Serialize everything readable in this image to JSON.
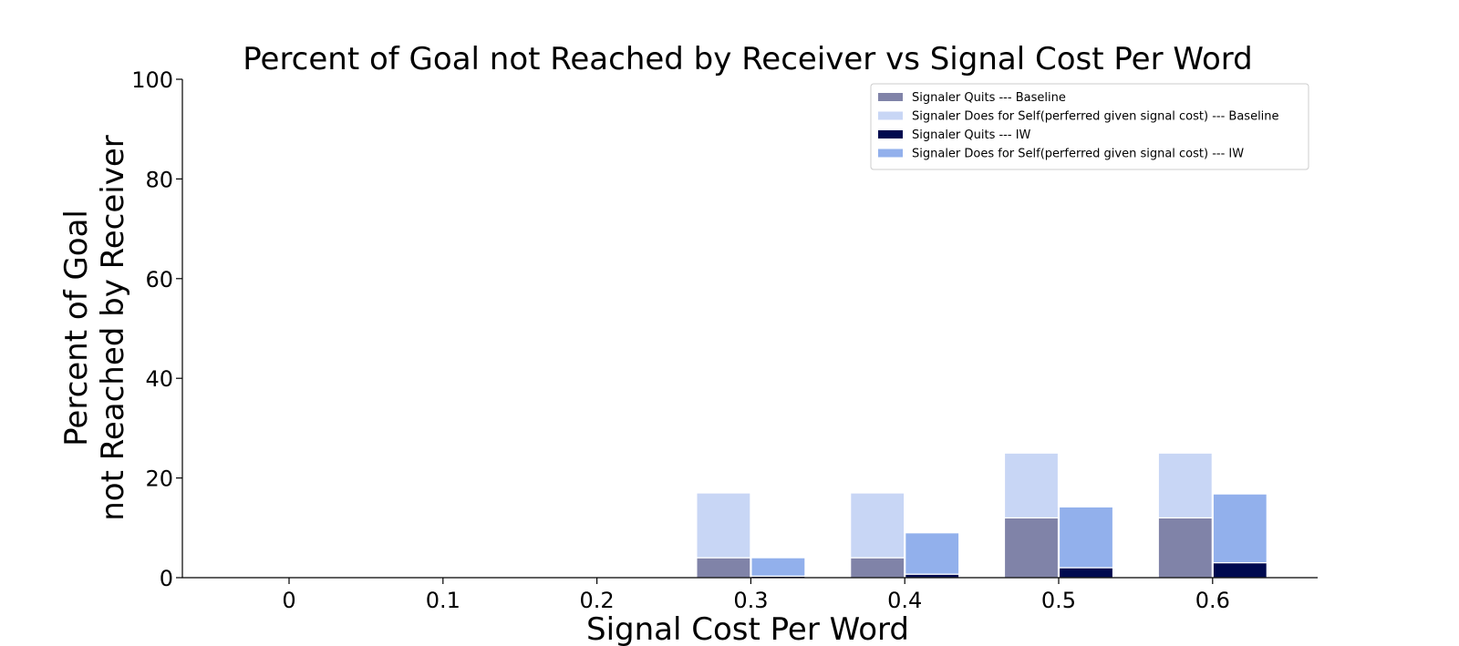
{
  "chart_data": {
    "type": "bar",
    "title": "Percent of Goal not Reached by Receiver vs Signal Cost Per Word",
    "xlabel": "Signal Cost Per Word",
    "ylabel_lines": [
      "Percent of Goal",
      "not Reached by Receiver"
    ],
    "categories": [
      "0",
      "0.1",
      "0.2",
      "0.3",
      "0.4",
      "0.5",
      "0.6"
    ],
    "ylim": [
      0,
      100
    ],
    "yticks": [
      0,
      20,
      40,
      60,
      80,
      100
    ],
    "stacked": true,
    "grid": false,
    "legend_position": "top-right",
    "groups": [
      {
        "name": "Baseline",
        "series": [
          {
            "name": "Signaler Quits --- Baseline",
            "color": "#8083a8",
            "values": [
              0,
              0,
              0,
              4,
              4,
              12,
              12
            ]
          },
          {
            "name": "Signaler Does for Self(perferred given signal cost) --- Baseline",
            "color": "#c8d6f5",
            "values": [
              0,
              0,
              0,
              13,
              13,
              13,
              13
            ]
          }
        ]
      },
      {
        "name": "IW",
        "series": [
          {
            "name": "Signaler Quits --- IW",
            "color": "#000a4f",
            "values": [
              0,
              0,
              0,
              0.3,
              0.7,
              2,
              3
            ]
          },
          {
            "name": "Signaler Does for Self(perferred given signal cost) --- IW",
            "color": "#92b0ec",
            "values": [
              0,
              0,
              0,
              3.7,
              8.3,
              12.2,
              13.8
            ]
          }
        ]
      }
    ]
  }
}
